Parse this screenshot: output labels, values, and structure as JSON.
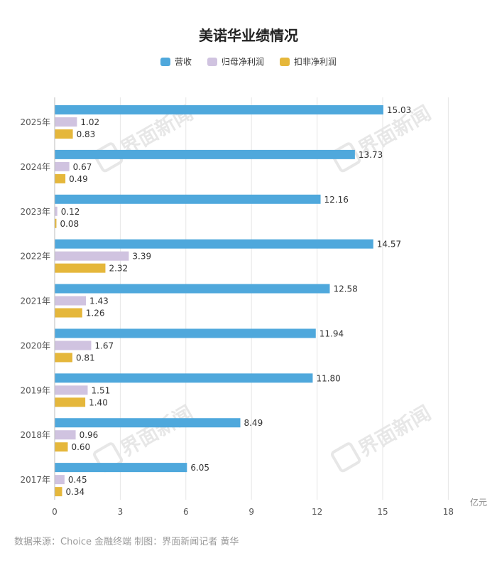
{
  "chart_data": {
    "type": "bar",
    "orientation": "horizontal",
    "title": "美诺华业绩情况",
    "unit": "亿元",
    "categories": [
      "2025年",
      "2024年",
      "2023年",
      "2022年",
      "2021年",
      "2020年",
      "2019年",
      "2018年",
      "2017年"
    ],
    "series": [
      {
        "name": "营收",
        "color": "#4FA8DC",
        "values": [
          15.03,
          13.73,
          12.16,
          14.57,
          12.58,
          11.94,
          11.8,
          8.49,
          6.05
        ]
      },
      {
        "name": "归母净利润",
        "color": "#D0C3E0",
        "values": [
          1.02,
          0.67,
          0.12,
          3.39,
          1.43,
          1.67,
          1.51,
          0.96,
          0.45
        ]
      },
      {
        "name": "扣非净利润",
        "color": "#E5B73B",
        "values": [
          0.83,
          0.49,
          0.08,
          2.32,
          1.26,
          0.81,
          1.4,
          0.6,
          0.34
        ]
      }
    ],
    "xlim": [
      0,
      18
    ],
    "xticks": [
      0,
      3,
      6,
      9,
      12,
      15,
      18
    ],
    "grid": true,
    "legend_position": "top-center"
  },
  "watermark": "界面新闻",
  "source": "数据来源：Choice 金融终端 制图：界面新闻记者 黄华"
}
